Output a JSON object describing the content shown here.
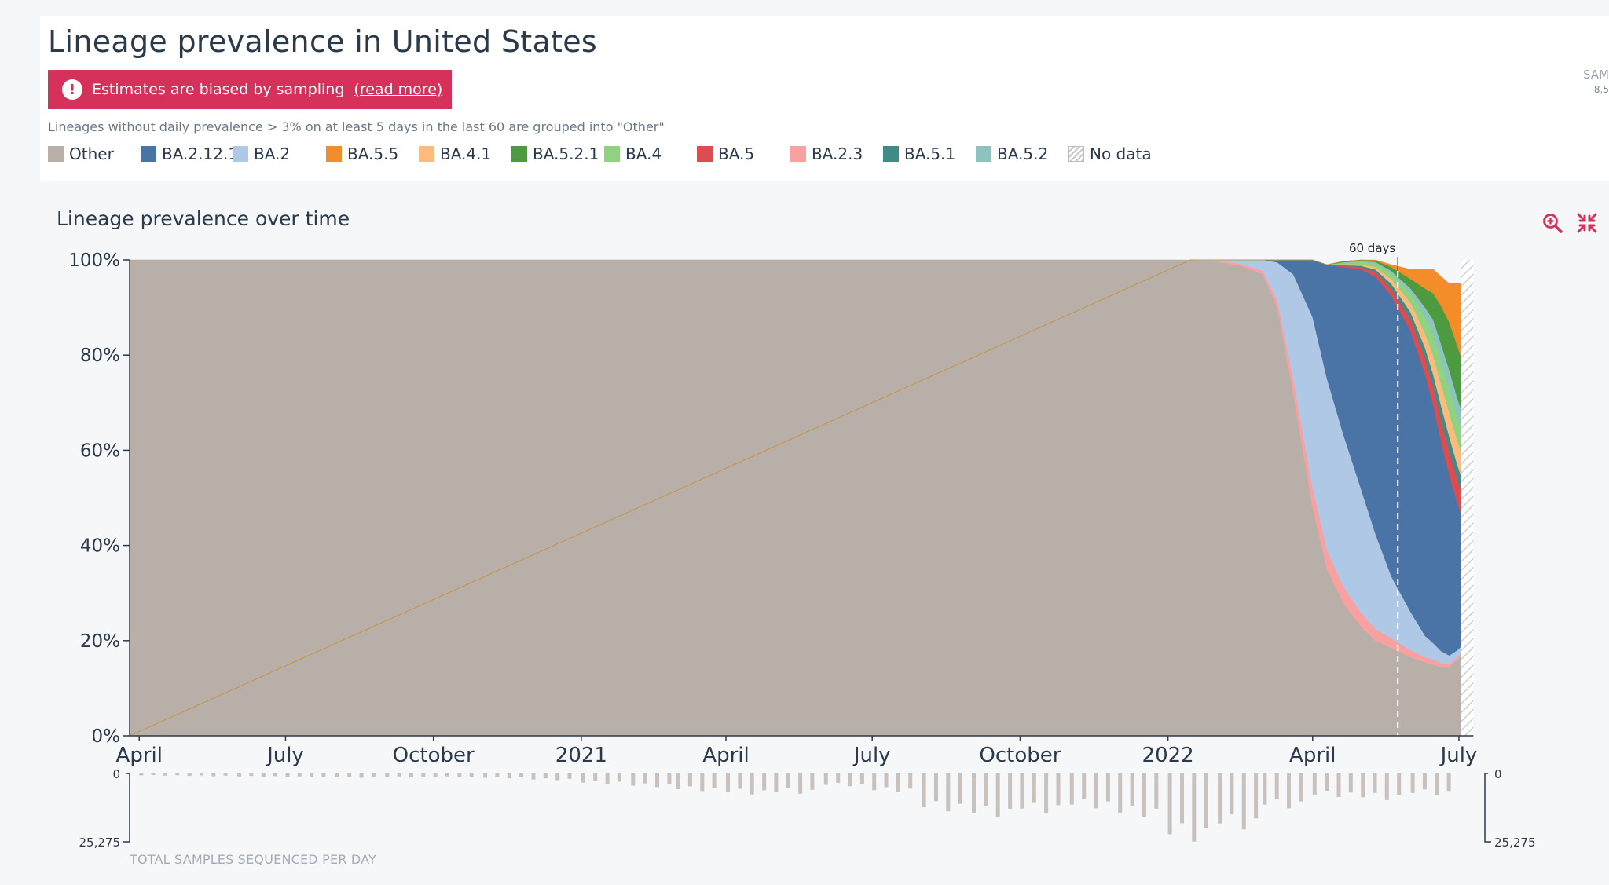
{
  "page": {
    "title": "Lineage prevalence in United States",
    "banner": {
      "text": "Estimates are biased by sampling",
      "link": "(read more)",
      "icon": "alert-circle-icon"
    },
    "grouping_note": "Lineages without daily prevalence > 3% on at least 5 days in the last 60 are grouped into \"Other\"",
    "samples_peek": {
      "label": "SAM",
      "value": "8,5"
    },
    "chart_title": "Lineage prevalence over time",
    "toolbar": {
      "zoom_icon": "zoom-in-icon",
      "collapse_icon": "collapse-arrows-icon"
    },
    "accent_color": "#d6315a"
  },
  "legend": [
    {
      "name": "Other",
      "color": "#b9afa9"
    },
    {
      "name": "BA.2.12.1",
      "color": "#4a74a6"
    },
    {
      "name": "BA.2",
      "color": "#aec8e6"
    },
    {
      "name": "BA.5.5",
      "color": "#f28d2a"
    },
    {
      "name": "BA.4.1",
      "color": "#fcbb7c"
    },
    {
      "name": "BA.5.2.1",
      "color": "#4e9a41"
    },
    {
      "name": "BA.4",
      "color": "#8fd27f"
    },
    {
      "name": "BA.5",
      "color": "#dc4c50"
    },
    {
      "name": "BA.2.3",
      "color": "#f9a1a0"
    },
    {
      "name": "BA.5.1",
      "color": "#3f8b8a"
    },
    {
      "name": "BA.5.2",
      "color": "#8cc3bd"
    },
    {
      "name": "No data",
      "color": "hatched"
    }
  ],
  "chart_data": [
    {
      "type": "area",
      "stacked": true,
      "title": "Lineage prevalence over time",
      "xlabel": "",
      "ylabel": "",
      "ylim": [
        0,
        100
      ],
      "y_unit": "%",
      "y_ticks": [
        "0%",
        "20%",
        "40%",
        "60%",
        "80%",
        "100%"
      ],
      "x_tick_labels": [
        "April",
        "July",
        "October",
        "2021",
        "April",
        "July",
        "October",
        "2022",
        "April",
        "July"
      ],
      "x_tick_dates": [
        "2020-04-01",
        "2020-07-01",
        "2020-10-01",
        "2021-01-01",
        "2021-04-01",
        "2021-07-01",
        "2021-10-01",
        "2022-01-01",
        "2022-04-01",
        "2022-07-01"
      ],
      "x_range": [
        "2020-03-26",
        "2022-07-02"
      ],
      "no_data_range": [
        "2022-07-02",
        "2022-07-10"
      ],
      "marker": {
        "label": "60 days",
        "date": "2022-05-24",
        "style": "dashed"
      },
      "x": [
        "2022-01-15",
        "2022-02-01",
        "2022-02-15",
        "2022-03-01",
        "2022-03-10",
        "2022-03-20",
        "2022-04-01",
        "2022-04-10",
        "2022-04-20",
        "2022-05-01",
        "2022-05-10",
        "2022-05-20",
        "2022-06-01",
        "2022-06-10",
        "2022-06-15",
        "2022-06-20",
        "2022-06-25",
        "2022-06-30",
        "2022-07-02"
      ],
      "series": [
        {
          "name": "Other",
          "values": [
            100,
            99.6,
            98.8,
            97,
            90,
            72,
            48,
            35,
            28,
            23,
            20,
            18.5,
            16.5,
            15.5,
            15,
            14.5,
            14.5,
            16,
            17
          ]
        },
        {
          "name": "BA.2.3",
          "values": [
            0,
            0.2,
            0.4,
            0.7,
            1.5,
            3,
            4,
            4,
            3.5,
            3,
            2.5,
            2,
            1.5,
            1,
            1,
            0.8,
            0.6,
            0.5,
            0.4
          ]
        },
        {
          "name": "BA.2",
          "values": [
            0,
            0.2,
            0.8,
            2.3,
            8,
            22,
            36,
            36,
            32,
            26,
            20,
            13,
            8,
            4.5,
            3.5,
            2.5,
            1.8,
            1.5,
            1.3
          ]
        },
        {
          "name": "BA.2.12.1",
          "values": [
            0,
            0,
            0,
            0,
            0.5,
            3,
            12,
            24,
            35,
            46,
            54,
            59,
            59,
            55,
            50,
            44,
            38,
            31,
            28.3
          ]
        },
        {
          "name": "BA.5",
          "values": [
            0,
            0,
            0,
            0,
            0,
            0,
            0,
            0,
            0.3,
            0.5,
            1,
            1.5,
            2.5,
            3.5,
            4,
            4.5,
            5,
            5,
            5
          ]
        },
        {
          "name": "BA.5.1",
          "values": [
            0,
            0,
            0,
            0,
            0,
            0,
            0,
            0,
            0.1,
            0.3,
            0.5,
            1,
            1.5,
            2,
            2.5,
            3,
            3,
            3,
            3
          ]
        },
        {
          "name": "BA.4.1",
          "values": [
            0,
            0,
            0,
            0,
            0,
            0,
            0,
            0,
            0.2,
            0.3,
            0.5,
            1,
            2,
            3,
            4,
            4.5,
            5,
            5,
            5
          ]
        },
        {
          "name": "BA.4",
          "values": [
            0,
            0,
            0,
            0,
            0,
            0,
            0,
            0,
            0.3,
            0.5,
            0.8,
            1.2,
            2,
            3.5,
            4.5,
            5,
            5,
            5,
            5
          ]
        },
        {
          "name": "BA.5.2",
          "values": [
            0,
            0,
            0,
            0,
            0,
            0,
            0,
            0,
            0.1,
            0.2,
            0.3,
            0.5,
            1,
            2,
            3,
            3.5,
            4,
            4,
            4
          ]
        },
        {
          "name": "BA.5.2.1",
          "values": [
            0,
            0,
            0,
            0,
            0,
            0,
            0,
            0,
            0.2,
            0.2,
            0.3,
            0.8,
            2,
            4,
            5.5,
            8,
            10,
            11,
            11
          ]
        },
        {
          "name": "BA.5.5",
          "values": [
            0,
            0,
            0,
            0,
            0,
            0,
            0,
            0,
            0,
            0,
            0.1,
            0.5,
            2,
            4,
            5,
            6.2,
            8.1,
            13,
            15
          ]
        }
      ]
    },
    {
      "type": "bar",
      "title": "",
      "caption": "TOTAL SAMPLES SEQUENCED PER DAY",
      "orientation": "downward",
      "ylim": [
        0,
        25275
      ],
      "y_tick_labels": [
        "0",
        "25,275"
      ],
      "x": [
        "2020-04",
        "2020-05",
        "2020-06",
        "2020-07",
        "2020-08",
        "2020-09",
        "2020-10",
        "2020-11",
        "2020-12",
        "2021-01",
        "2021-02",
        "2021-03",
        "2021-04",
        "2021-05",
        "2021-06",
        "2021-07",
        "2021-08",
        "2021-09",
        "2021-10",
        "2021-11",
        "2021-12",
        "2022-01",
        "2022-02",
        "2022-03",
        "2022-04",
        "2022-05",
        "2022-06"
      ],
      "values": [
        700,
        900,
        1100,
        1300,
        1400,
        1300,
        1300,
        1600,
        2200,
        3400,
        4500,
        5800,
        6900,
        6700,
        4200,
        6200,
        12500,
        14500,
        13000,
        11500,
        14500,
        22500,
        18500,
        11500,
        7800,
        8800,
        7200
      ]
    }
  ]
}
